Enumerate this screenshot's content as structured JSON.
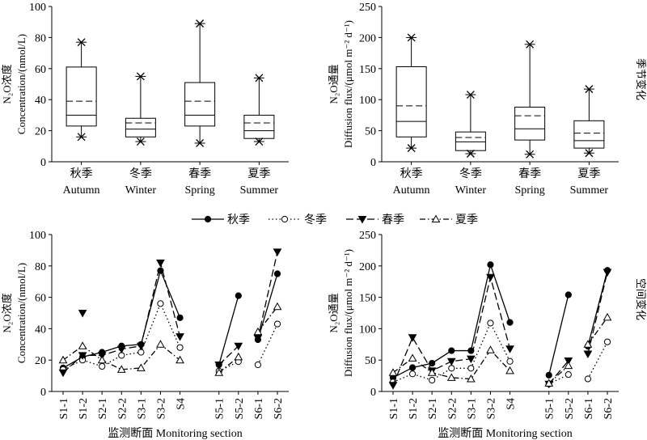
{
  "colors": {
    "ink": "#000000",
    "paper": "#ffffff"
  },
  "section_labels": {
    "top": "季节变化",
    "bottom": "空间变化"
  },
  "legend": [
    {
      "label": "秋季",
      "marker": "circle-filled",
      "line": "solid"
    },
    {
      "label": "冬季",
      "marker": "circle-open",
      "line": "dotted"
    },
    {
      "label": "春季",
      "marker": "triangle-down-filled",
      "line": "dashed"
    },
    {
      "label": "夏季",
      "marker": "triangle-up-open",
      "line": "dashdot"
    }
  ],
  "chart_data": [
    {
      "type": "box",
      "id": "box-concentration",
      "ylabel": "N₂O浓度 Concentration/(nmol/L)",
      "ylim": [
        0,
        100
      ],
      "yticks": [
        0,
        20,
        40,
        60,
        80,
        100
      ],
      "categories": [
        {
          "cn": "秋季",
          "en": "Autumn",
          "min": 16,
          "q1": 23,
          "median": 30,
          "mean": 39,
          "q3": 61,
          "max": 77
        },
        {
          "cn": "冬季",
          "en": "Winter",
          "min": 13,
          "q1": 16,
          "median": 21,
          "mean": 25,
          "q3": 28,
          "max": 55
        },
        {
          "cn": "春季",
          "en": "Spring",
          "min": 12,
          "q1": 23,
          "median": 30,
          "mean": 39,
          "q3": 51,
          "max": 89
        },
        {
          "cn": "夏季",
          "en": "Summer",
          "min": 13,
          "q1": 15,
          "median": 20,
          "mean": 25,
          "q3": 30,
          "max": 54
        }
      ]
    },
    {
      "type": "box",
      "id": "box-flux",
      "ylabel": "N₂O通量 Diffusion flux/(μmol m⁻² d⁻¹)",
      "ylim": [
        0,
        250
      ],
      "yticks": [
        0,
        50,
        100,
        150,
        200,
        250
      ],
      "categories": [
        {
          "cn": "秋季",
          "en": "Autumn",
          "min": 22,
          "q1": 40,
          "median": 65,
          "mean": 90,
          "q3": 153,
          "max": 200
        },
        {
          "cn": "冬季",
          "en": "Winter",
          "min": 13,
          "q1": 18,
          "median": 32,
          "mean": 39,
          "q3": 48,
          "max": 108
        },
        {
          "cn": "春季",
          "en": "Spring",
          "min": 12,
          "q1": 35,
          "median": 53,
          "mean": 74,
          "q3": 88,
          "max": 189
        },
        {
          "cn": "夏季",
          "en": "Summer",
          "min": 14,
          "q1": 22,
          "median": 34,
          "mean": 46,
          "q3": 66,
          "max": 117
        }
      ]
    },
    {
      "type": "line",
      "id": "line-concentration",
      "ylabel": "N₂O浓度 Concentration/(nmol/L)",
      "xlabel": "监测断面 Monitoring section",
      "ylim": [
        0,
        100
      ],
      "yticks": [
        0,
        20,
        40,
        60,
        80,
        100
      ],
      "categories": [
        "S1-1",
        "S1-2",
        "S2-1",
        "S2-2",
        "S3-1",
        "S3-2",
        "S4",
        "",
        "S5-1",
        "S5-2",
        "S6-1",
        "S6-2"
      ],
      "segments": [
        [
          0,
          6
        ],
        [
          8,
          9
        ],
        [
          10,
          11
        ]
      ],
      "series": [
        {
          "name": "秋季",
          "values": [
            15,
            22,
            25,
            29,
            30,
            77,
            47,
            null,
            17,
            61,
            33,
            75
          ]
        },
        {
          "name": "冬季",
          "values": [
            14,
            20,
            16,
            23,
            25,
            56,
            28,
            null,
            13,
            19,
            17,
            43
          ]
        },
        {
          "name": "春季",
          "values": [
            12,
            23,
            23,
            27,
            29,
            82,
            35,
            null,
            17,
            29,
            34,
            89
          ]
        },
        {
          "name": "夏季",
          "values": [
            20,
            29,
            20,
            14,
            15,
            30,
            20,
            null,
            12,
            22,
            38,
            54
          ]
        }
      ],
      "extra_series": [
        {
          "name": "春季",
          "values": [
            null,
            50,
            null,
            null,
            null,
            null,
            null,
            null,
            null,
            null,
            null,
            null
          ]
        }
      ]
    },
    {
      "type": "line",
      "id": "line-flux",
      "ylabel": "N₂O通量 Diffusion flux/(μmol m⁻² d⁻¹)",
      "xlabel": "监测断面 Monitoring section",
      "ylim": [
        0,
        250
      ],
      "yticks": [
        0,
        50,
        100,
        150,
        200,
        250
      ],
      "categories": [
        "S1-1",
        "S1-2",
        "S2-1",
        "S2-2",
        "S3-1",
        "S3-2",
        "S4",
        "",
        "S5-1",
        "S5-2",
        "S6-1",
        "S6-2"
      ],
      "segments": [
        [
          0,
          6
        ],
        [
          8,
          9
        ],
        [
          10,
          11
        ]
      ],
      "series": [
        {
          "name": "秋季",
          "values": [
            22,
            38,
            45,
            65,
            65,
            202,
            110,
            null,
            26,
            154,
            72,
            193
          ]
        },
        {
          "name": "冬季",
          "values": [
            15,
            28,
            18,
            37,
            37,
            109,
            48,
            null,
            12,
            27,
            20,
            79
          ]
        },
        {
          "name": "春季",
          "values": [
            10,
            86,
            33,
            48,
            52,
            182,
            68,
            null,
            12,
            49,
            60,
            190
          ]
        },
        {
          "name": "夏季",
          "values": [
            30,
            53,
            30,
            22,
            20,
            66,
            33,
            null,
            13,
            41,
            75,
            118
          ]
        }
      ]
    }
  ]
}
